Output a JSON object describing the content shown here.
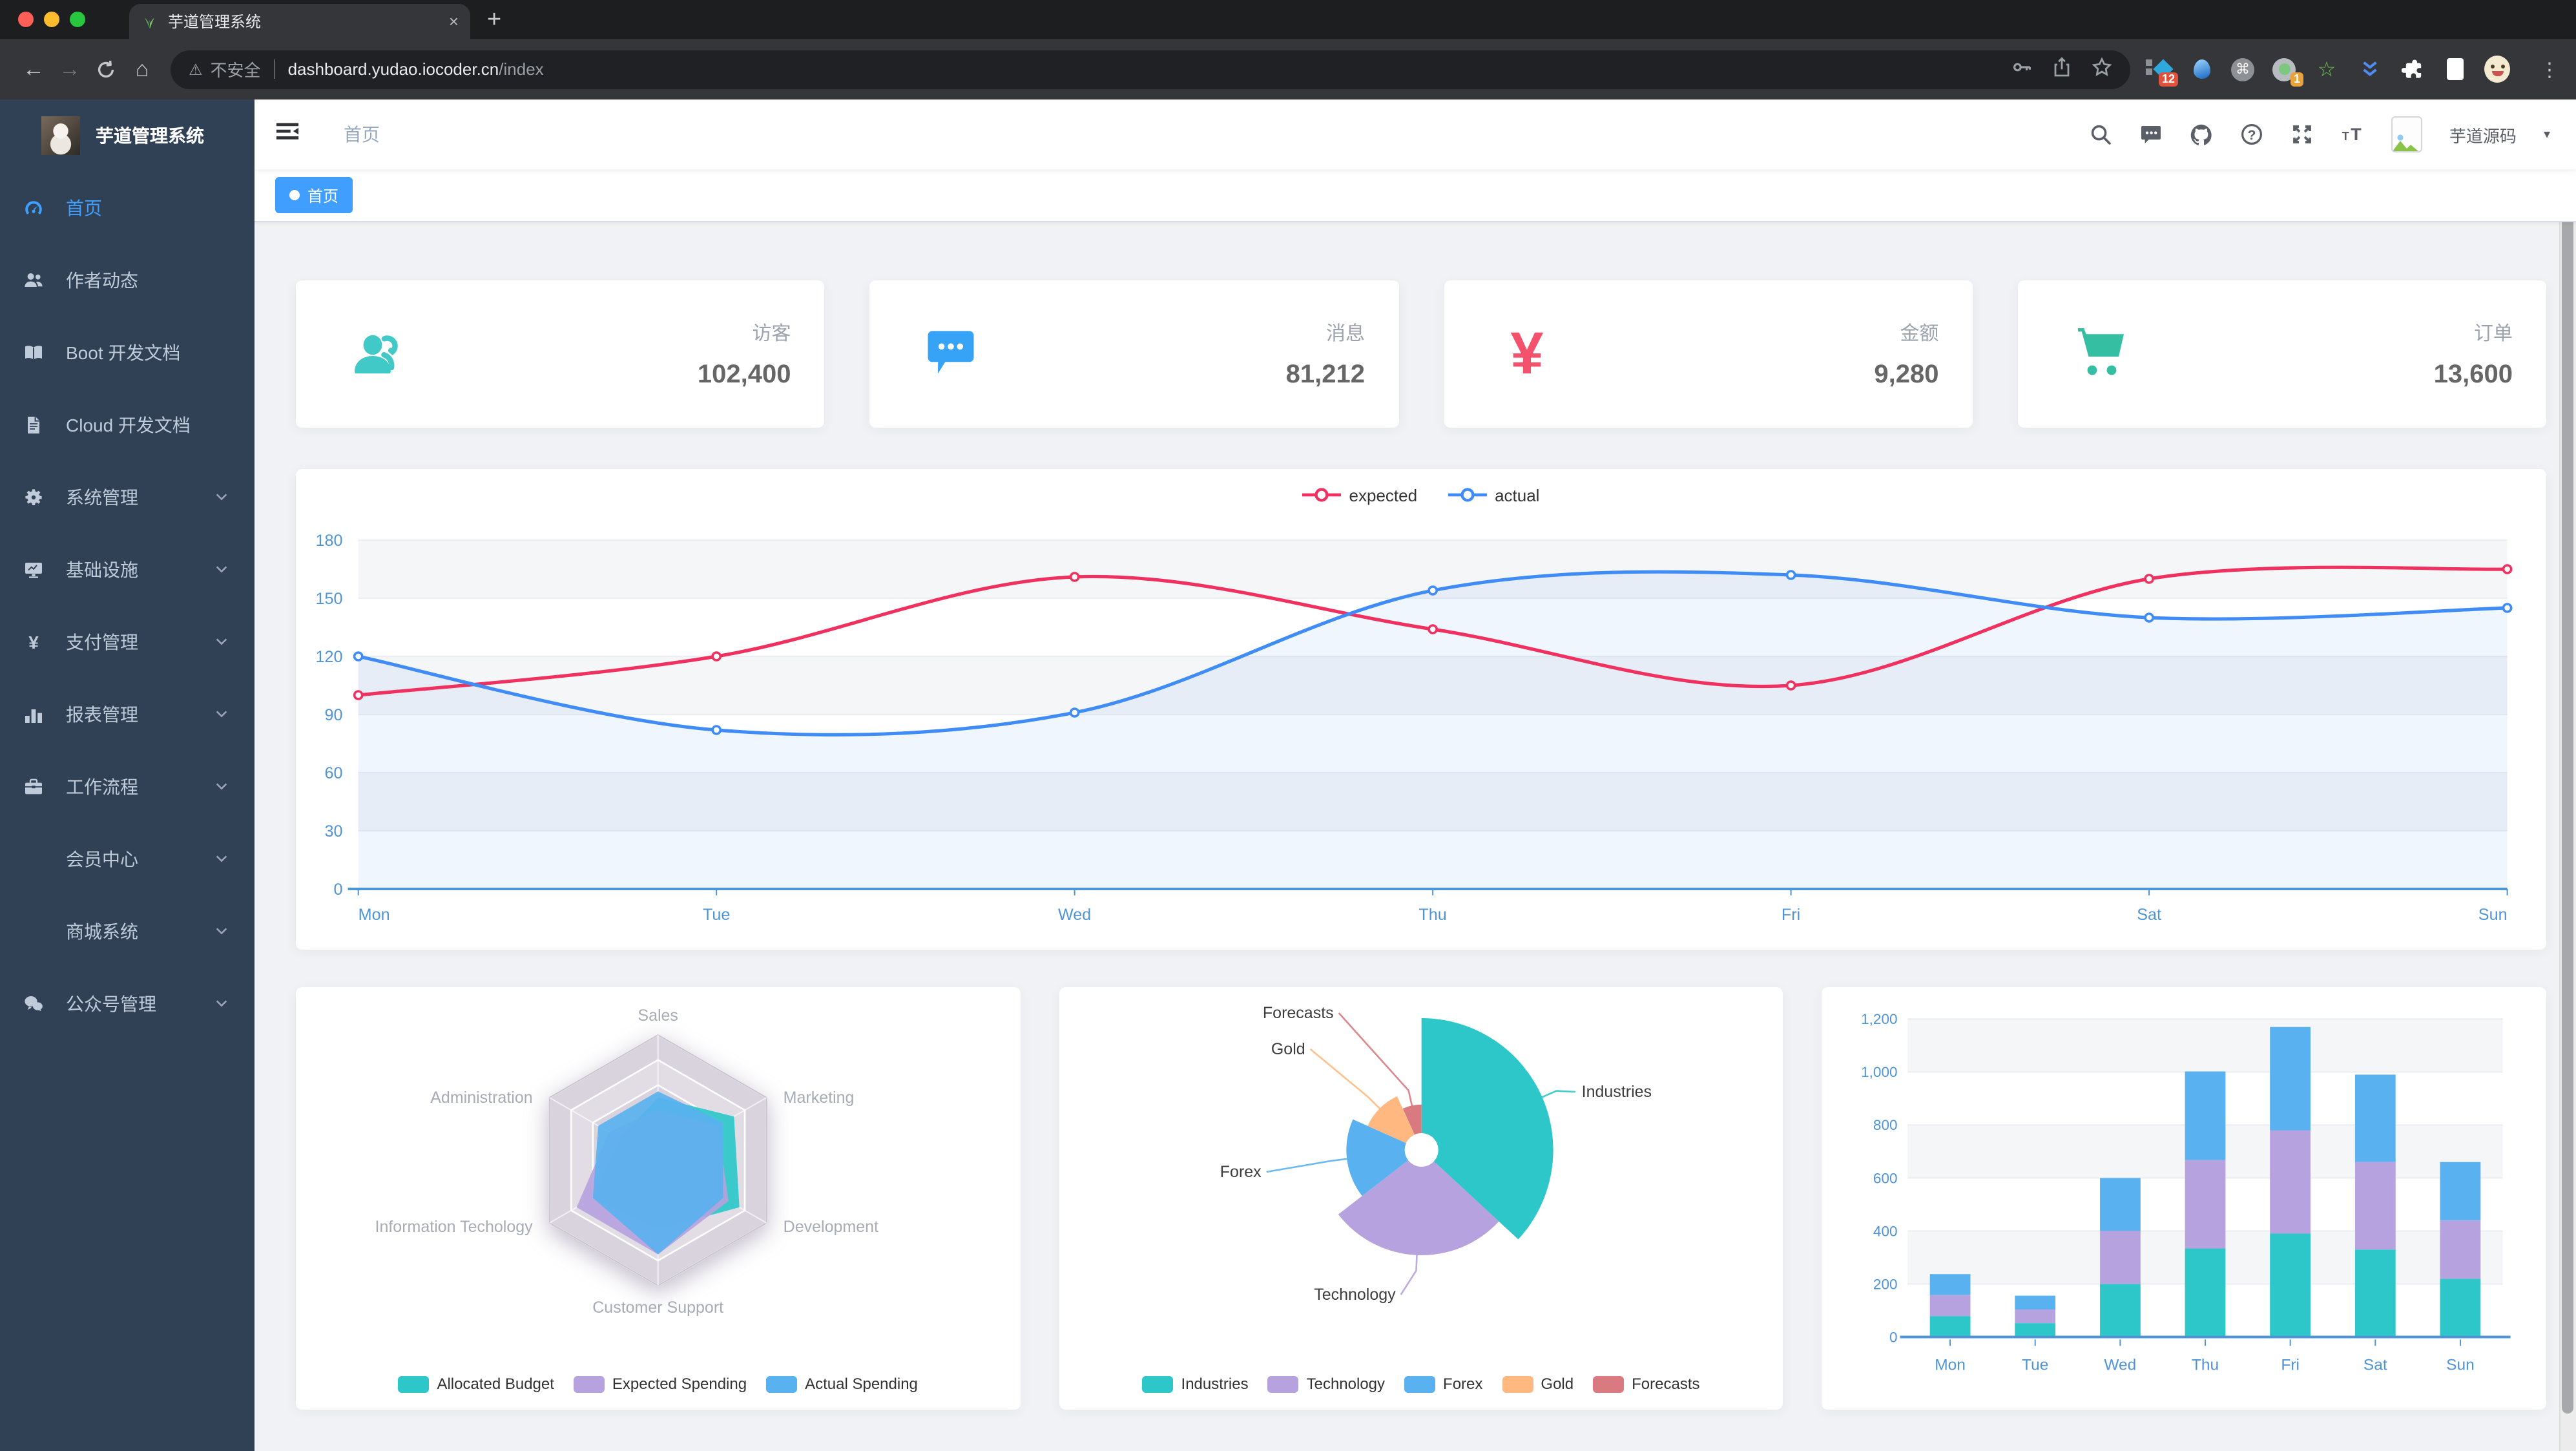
{
  "browser": {
    "tab": {
      "title": "芋道管理系统",
      "close_glyph": "×"
    },
    "new_tab_glyph": "+",
    "nav": {
      "back_glyph": "←",
      "forward_glyph": "→",
      "home_glyph": "⌂"
    },
    "omnibox": {
      "warning_glyph": "⚠",
      "security_label": "不安全",
      "url_host": "dashboard.yudao.iocoder.cn",
      "url_path": "/index"
    },
    "extensions": {
      "badge_red": "12",
      "badge_orange": "1",
      "command_glyph": "⌘",
      "star_glyph": "☆"
    },
    "menu_glyph": "⋮"
  },
  "sidebar": {
    "logo_title": "芋道管理系统",
    "items": [
      {
        "label": "首页",
        "icon": "dashboard",
        "active": true,
        "expandable": false,
        "sub": false
      },
      {
        "label": "作者动态",
        "icon": "people",
        "active": false,
        "expandable": false,
        "sub": false
      },
      {
        "label": "Boot 开发文档",
        "icon": "book",
        "active": false,
        "expandable": false,
        "sub": false
      },
      {
        "label": "Cloud 开发文档",
        "icon": "doc",
        "active": false,
        "expandable": false,
        "sub": false
      },
      {
        "label": "系统管理",
        "icon": "gear",
        "active": false,
        "expandable": true,
        "sub": false
      },
      {
        "label": "基础设施",
        "icon": "monitor",
        "active": false,
        "expandable": true,
        "sub": false
      },
      {
        "label": "支付管理",
        "icon": "yen",
        "active": false,
        "expandable": true,
        "sub": false
      },
      {
        "label": "报表管理",
        "icon": "chart",
        "active": false,
        "expandable": true,
        "sub": false
      },
      {
        "label": "工作流程",
        "icon": "briefcase",
        "active": false,
        "expandable": true,
        "sub": false
      },
      {
        "label": "会员中心",
        "icon": "",
        "active": false,
        "expandable": true,
        "sub": true
      },
      {
        "label": "商城系统",
        "icon": "",
        "active": false,
        "expandable": true,
        "sub": true
      },
      {
        "label": "公众号管理",
        "icon": "wechat",
        "active": false,
        "expandable": true,
        "sub": false
      }
    ]
  },
  "appbar": {
    "breadcrumb": "首页",
    "icons": [
      "search",
      "message",
      "github",
      "question",
      "fullscreen",
      "textsize"
    ],
    "username": "芋道源码",
    "caret": "▾"
  },
  "tagbar": {
    "active_tag": "首页"
  },
  "stats": {
    "items": [
      {
        "label": "访客",
        "value": "102,400",
        "icon": "peoples",
        "color": "#40c9c6"
      },
      {
        "label": "消息",
        "value": "81,212",
        "icon": "message",
        "color": "#36a3f7"
      },
      {
        "label": "金额",
        "value": "9,280",
        "icon": "money",
        "color": "#f4516c"
      },
      {
        "label": "订单",
        "value": "13,600",
        "icon": "shopping",
        "color": "#34bfa3"
      }
    ]
  },
  "colors": {
    "accent": "#409eff",
    "sidebar_bg": "#304156",
    "axis_label": "#4f95d5",
    "content_bg": "#f0f2f5"
  },
  "chart_data": [
    {
      "id": "weekly-line",
      "type": "line",
      "x": [
        "Mon",
        "Tue",
        "Wed",
        "Thu",
        "Fri",
        "Sat",
        "Sun"
      ],
      "ylim": [
        0,
        180
      ],
      "ytick_step": 30,
      "grid": true,
      "legend_position": "top",
      "series": [
        {
          "name": "expected",
          "color": "#f0305f",
          "values": [
            100,
            120,
            161,
            134,
            105,
            160,
            165
          ]
        },
        {
          "name": "actual",
          "color": "#3f8cf7",
          "values": [
            120,
            82,
            91,
            154,
            162,
            140,
            145
          ]
        }
      ]
    },
    {
      "id": "budget-radar",
      "type": "radar",
      "legend_position": "bottom",
      "indicators": [
        {
          "name": "Sales",
          "max": 10000
        },
        {
          "name": "Marketing",
          "max": 20000
        },
        {
          "name": "Development",
          "max": 20000
        },
        {
          "name": "Customer Support",
          "max": 20000
        },
        {
          "name": "Information Techology",
          "max": 20000
        },
        {
          "name": "Administration",
          "max": 20000
        }
      ],
      "series": [
        {
          "name": "Allocated Budget",
          "color": "#2ec7c9",
          "values": [
            5000,
            14000,
            15000,
            11000,
            12000,
            7000
          ]
        },
        {
          "name": "Expected Spending",
          "color": "#b6a2de",
          "values": [
            4000,
            11000,
            13000,
            15000,
            15000,
            9000
          ]
        },
        {
          "name": "Actual Spending",
          "color": "#5ab1ef",
          "values": [
            5500,
            12000,
            12000,
            15000,
            12000,
            11000
          ]
        }
      ]
    },
    {
      "id": "share-pie",
      "type": "pie",
      "rose": true,
      "legend_position": "bottom",
      "items": [
        {
          "name": "Industries",
          "value": 320,
          "color": "#2ec7c9",
          "label_pos": [
            397,
            73
          ]
        },
        {
          "name": "Technology",
          "value": 240,
          "color": "#b6a2de",
          "label_pos": [
            262,
            230
          ]
        },
        {
          "name": "Forex",
          "value": 149,
          "color": "#5ab1ef",
          "label_pos": [
            158,
            135
          ]
        },
        {
          "name": "Gold",
          "value": 100,
          "color": "#ffb980",
          "label_pos": [
            192,
            40
          ]
        },
        {
          "name": "Forecasts",
          "value": 59,
          "color": "#d87a80",
          "label_pos": [
            214,
            12
          ]
        }
      ]
    },
    {
      "id": "weekly-bar",
      "type": "bar",
      "stacked": true,
      "x": [
        "Mon",
        "Tue",
        "Wed",
        "Thu",
        "Fri",
        "Sat",
        "Sun"
      ],
      "ylim": [
        0,
        1200
      ],
      "ytick_step": 200,
      "grid": true,
      "legend_position": "none",
      "series": [
        {
          "name": "",
          "color": "#2ec7c9",
          "values": [
            79,
            52,
            200,
            334,
            390,
            330,
            220
          ]
        },
        {
          "name": "",
          "color": "#b6a2de",
          "values": [
            79,
            52,
            200,
            334,
            390,
            330,
            220
          ]
        },
        {
          "name": "",
          "color": "#5ab1ef",
          "values": [
            79,
            52,
            200,
            334,
            390,
            330,
            220
          ]
        }
      ]
    }
  ]
}
